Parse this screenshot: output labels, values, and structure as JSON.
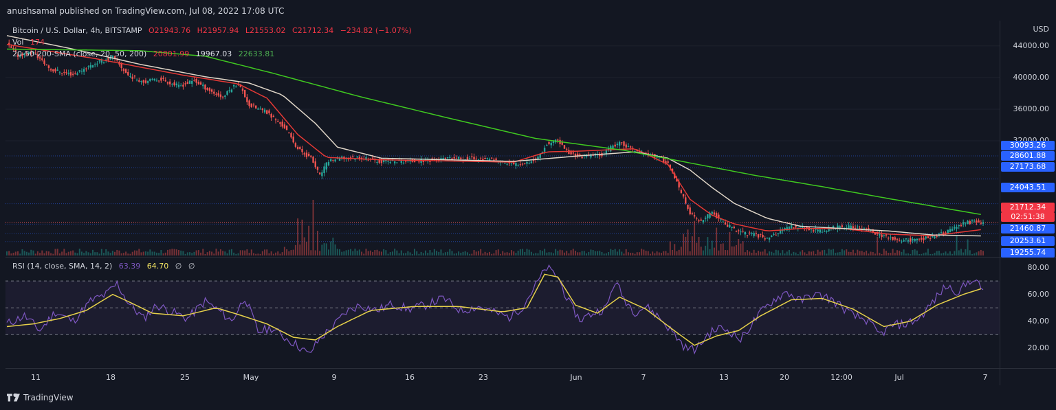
{
  "publisher_line": "anushsamal published on TradingView.com, Jul 08, 2022 17:08 UTC",
  "legend": {
    "symbol": "Bitcoin / U.S. Dollar, 4h, BITSTAMP",
    "o": "O21943.76",
    "h": "H21957.94",
    "l": "L21553.02",
    "c": "C21712.34",
    "change": "−234.82 (−1.07%)",
    "vol_label": "Vol",
    "vol_value": "174",
    "sma_label": "20-50-200-SMA (close, 20, 50, 200)",
    "sma20": "20801.99",
    "sma50": "19967.03",
    "sma200": "22633.81"
  },
  "rsi_legend": {
    "label": "RSI (14, close, SMA, 14, 2)",
    "rsi": "63.39",
    "sma": "64.70",
    "e1": "∅",
    "e2": "∅"
  },
  "price_axis": {
    "currency": "USD",
    "ticks": [
      "44000.00",
      "40000.00",
      "36000.00",
      "32000.00"
    ],
    "tags": [
      {
        "text": "30093.26",
        "color": "blue"
      },
      {
        "text": "28601.88",
        "color": "blue"
      },
      {
        "text": "27173.68",
        "color": "blue"
      },
      {
        "text": "24043.51",
        "color": "blue"
      },
      {
        "text": "21712.34",
        "color": "red"
      },
      {
        "text": "02:51:38",
        "color": "red"
      },
      {
        "text": "21460.87",
        "color": "blue"
      },
      {
        "text": "20253.61",
        "color": "blue"
      },
      {
        "text": "19255.74",
        "color": "blue"
      }
    ]
  },
  "rsi_axis": {
    "ticks": [
      "80.00",
      "60.00",
      "40.00",
      "20.00"
    ]
  },
  "time_axis": {
    "labels": [
      "11",
      "18",
      "25",
      "May",
      "9",
      "16",
      "23",
      "Jun",
      "7",
      "13",
      "20",
      "12:00",
      "Jul",
      "7"
    ]
  },
  "footer": {
    "brand": "TradingView"
  },
  "colors": {
    "background": "#131722",
    "up": "#26a69a",
    "down": "#ef5350",
    "sma20": "#e53935",
    "sma50": "#e0d6c8",
    "sma200": "#3fc820",
    "rsi": "#7e57c2",
    "rsi_sma": "#e5d04a",
    "support_lines": "#2962ff"
  },
  "chart_data": [
    {
      "type": "candlestick",
      "title": "Bitcoin / U.S. Dollar, 4h, BITSTAMP",
      "ylabel": "USD",
      "ylim": [
        17500,
        47200
      ],
      "x_ticks": [
        "11",
        "18",
        "25",
        "May",
        "9",
        "16",
        "23",
        "Jun",
        "7",
        "13",
        "20",
        "12:00",
        "Jul",
        "7"
      ],
      "close_path": [
        [
          0,
          44200
        ],
        [
          5,
          42800
        ],
        [
          12,
          43200
        ],
        [
          20,
          41000
        ],
        [
          30,
          40400
        ],
        [
          40,
          41800
        ],
        [
          48,
          42600
        ],
        [
          55,
          40300
        ],
        [
          62,
          39500
        ],
        [
          70,
          39800
        ],
        [
          78,
          38900
        ],
        [
          85,
          39600
        ],
        [
          93,
          38200
        ],
        [
          98,
          37500
        ],
        [
          102,
          38700
        ],
        [
          105,
          39300
        ],
        [
          110,
          36500
        ],
        [
          118,
          35600
        ],
        [
          126,
          33700
        ],
        [
          132,
          31000
        ],
        [
          138,
          29800
        ],
        [
          142,
          27600
        ],
        [
          146,
          29500
        ],
        [
          152,
          29800
        ],
        [
          160,
          29900
        ],
        [
          170,
          29400
        ],
        [
          180,
          29400
        ],
        [
          190,
          29500
        ],
        [
          200,
          29700
        ],
        [
          210,
          29800
        ],
        [
          220,
          29600
        ],
        [
          230,
          29000
        ],
        [
          240,
          29600
        ],
        [
          245,
          31600
        ],
        [
          250,
          32000
        ],
        [
          255,
          30500
        ],
        [
          260,
          30000
        ],
        [
          270,
          30300
        ],
        [
          275,
          31300
        ],
        [
          279,
          31700
        ],
        [
          283,
          31000
        ],
        [
          288,
          30500
        ],
        [
          295,
          30000
        ],
        [
          300,
          29200
        ],
        [
          305,
          26000
        ],
        [
          310,
          22800
        ],
        [
          315,
          21700
        ],
        [
          320,
          23000
        ],
        [
          325,
          21600
        ],
        [
          330,
          20800
        ],
        [
          335,
          20300
        ],
        [
          340,
          20100
        ],
        [
          345,
          19700
        ],
        [
          350,
          20400
        ],
        [
          355,
          21100
        ],
        [
          360,
          21200
        ],
        [
          365,
          20700
        ],
        [
          370,
          20600
        ],
        [
          375,
          21000
        ],
        [
          380,
          21100
        ],
        [
          385,
          21000
        ],
        [
          390,
          20800
        ],
        [
          395,
          20200
        ],
        [
          400,
          19800
        ],
        [
          405,
          19300
        ],
        [
          410,
          19500
        ],
        [
          415,
          19600
        ],
        [
          420,
          19900
        ],
        [
          425,
          20300
        ],
        [
          430,
          21000
        ],
        [
          435,
          21600
        ],
        [
          440,
          21800
        ],
        [
          443,
          21712.34
        ]
      ],
      "sma_paths": {
        "SMA 20": [
          [
            0,
            44200
          ],
          [
            40,
            42400
          ],
          [
            80,
            40300
          ],
          [
            105,
            39200
          ],
          [
            118,
            37400
          ],
          [
            132,
            32800
          ],
          [
            145,
            29900
          ],
          [
            170,
            29600
          ],
          [
            230,
            29300
          ],
          [
            245,
            30600
          ],
          [
            260,
            30700
          ],
          [
            285,
            31000
          ],
          [
            300,
            29000
          ],
          [
            310,
            24600
          ],
          [
            320,
            22600
          ],
          [
            330,
            21500
          ],
          [
            345,
            20600
          ],
          [
            360,
            20900
          ],
          [
            380,
            20900
          ],
          [
            400,
            20200
          ],
          [
            420,
            20000
          ],
          [
            443,
            20801.99
          ]
        ],
        "SMA 50": [
          [
            0,
            45300
          ],
          [
            30,
            43600
          ],
          [
            60,
            41700
          ],
          [
            90,
            40100
          ],
          [
            110,
            39300
          ],
          [
            125,
            37800
          ],
          [
            140,
            34200
          ],
          [
            150,
            31200
          ],
          [
            170,
            29800
          ],
          [
            230,
            29400
          ],
          [
            260,
            30100
          ],
          [
            285,
            30600
          ],
          [
            300,
            29800
          ],
          [
            310,
            28300
          ],
          [
            320,
            26100
          ],
          [
            330,
            24100
          ],
          [
            345,
            22200
          ],
          [
            360,
            21200
          ],
          [
            380,
            20900
          ],
          [
            400,
            20600
          ],
          [
            420,
            20100
          ],
          [
            443,
            19967.03
          ]
        ],
        "SMA 200": [
          [
            0,
            43600
          ],
          [
            60,
            43400
          ],
          [
            90,
            42700
          ],
          [
            120,
            40600
          ],
          [
            160,
            37600
          ],
          [
            200,
            34900
          ],
          [
            240,
            32300
          ],
          [
            280,
            30800
          ],
          [
            310,
            29200
          ],
          [
            340,
            27600
          ],
          [
            370,
            26200
          ],
          [
            400,
            24700
          ],
          [
            425,
            23500
          ],
          [
            443,
            22633.81
          ]
        ]
      },
      "current_price": 21712.34,
      "levels": [
        30093.26,
        28601.88,
        27173.68,
        24043.51,
        21460.87,
        20253.61,
        19255.74
      ],
      "volume": {
        "last": 174
      }
    },
    {
      "type": "line",
      "title": "RSI (14, close, SMA, 14, 2)",
      "ylim": [
        5,
        87
      ],
      "bands": {
        "upper": 70,
        "middle": 50,
        "lower": 30
      },
      "series": [
        {
          "name": "RSI",
          "last": 63.39,
          "values": [
            [
              0,
              38
            ],
            [
              8,
              44
            ],
            [
              15,
              33
            ],
            [
              22,
              47
            ],
            [
              30,
              40
            ],
            [
              38,
              55
            ],
            [
              45,
              60
            ],
            [
              50,
              68
            ],
            [
              55,
              54
            ],
            [
              62,
              42
            ],
            [
              68,
              52
            ],
            [
              75,
              47
            ],
            [
              82,
              42
            ],
            [
              90,
              55
            ],
            [
              97,
              47
            ],
            [
              102,
              40
            ],
            [
              108,
              58
            ],
            [
              114,
              32
            ],
            [
              120,
              35
            ],
            [
              126,
              28
            ],
            [
              132,
              22
            ],
            [
              137,
              15
            ],
            [
              142,
              27
            ],
            [
              148,
              36
            ],
            [
              154,
              47
            ],
            [
              160,
              52
            ],
            [
              168,
              48
            ],
            [
              175,
              53
            ],
            [
              182,
              49
            ],
            [
              190,
              52
            ],
            [
              198,
              57
            ],
            [
              206,
              48
            ],
            [
              214,
              51
            ],
            [
              222,
              46
            ],
            [
              228,
              43
            ],
            [
              234,
              51
            ],
            [
              240,
              67
            ],
            [
              245,
              80
            ],
            [
              250,
              73
            ],
            [
              255,
              54
            ],
            [
              260,
              41
            ],
            [
              266,
              46
            ],
            [
              272,
              50
            ],
            [
              276,
              70
            ],
            [
              280,
              57
            ],
            [
              285,
              47
            ],
            [
              290,
              51
            ],
            [
              296,
              43
            ],
            [
              302,
              32
            ],
            [
              308,
              20
            ],
            [
              313,
              19
            ],
            [
              318,
              30
            ],
            [
              323,
              35
            ],
            [
              328,
              33
            ],
            [
              333,
              26
            ],
            [
              338,
              38
            ],
            [
              343,
              48
            ],
            [
              348,
              56
            ],
            [
              354,
              62
            ],
            [
              360,
              55
            ],
            [
              366,
              60
            ],
            [
              372,
              58
            ],
            [
              378,
              52
            ],
            [
              384,
              44
            ],
            [
              390,
              41
            ],
            [
              396,
              30
            ],
            [
              402,
              37
            ],
            [
              408,
              38
            ],
            [
              414,
              42
            ],
            [
              420,
              54
            ],
            [
              426,
              66
            ],
            [
              432,
              62
            ],
            [
              438,
              72
            ],
            [
              443,
              63.39
            ]
          ]
        },
        {
          "name": "RSI-based MA",
          "last": 64.7,
          "values": [
            [
              0,
              36
            ],
            [
              12,
              38
            ],
            [
              24,
              42
            ],
            [
              36,
              48
            ],
            [
              48,
              60
            ],
            [
              56,
              54
            ],
            [
              66,
              46
            ],
            [
              80,
              44
            ],
            [
              95,
              50
            ],
            [
              105,
              45
            ],
            [
              118,
              38
            ],
            [
              130,
              28
            ],
            [
              140,
              26
            ],
            [
              150,
              36
            ],
            [
              165,
              48
            ],
            [
              185,
              51
            ],
            [
              205,
              51
            ],
            [
              225,
              47
            ],
            [
              236,
              50
            ],
            [
              244,
              75
            ],
            [
              250,
              73
            ],
            [
              258,
              52
            ],
            [
              268,
              46
            ],
            [
              278,
              58
            ],
            [
              290,
              49
            ],
            [
              302,
              34
            ],
            [
              312,
              22
            ],
            [
              322,
              29
            ],
            [
              332,
              33
            ],
            [
              342,
              44
            ],
            [
              356,
              56
            ],
            [
              370,
              57
            ],
            [
              384,
              49
            ],
            [
              398,
              36
            ],
            [
              410,
              40
            ],
            [
              422,
              52
            ],
            [
              434,
              60
            ],
            [
              443,
              64.7
            ]
          ]
        }
      ]
    }
  ]
}
